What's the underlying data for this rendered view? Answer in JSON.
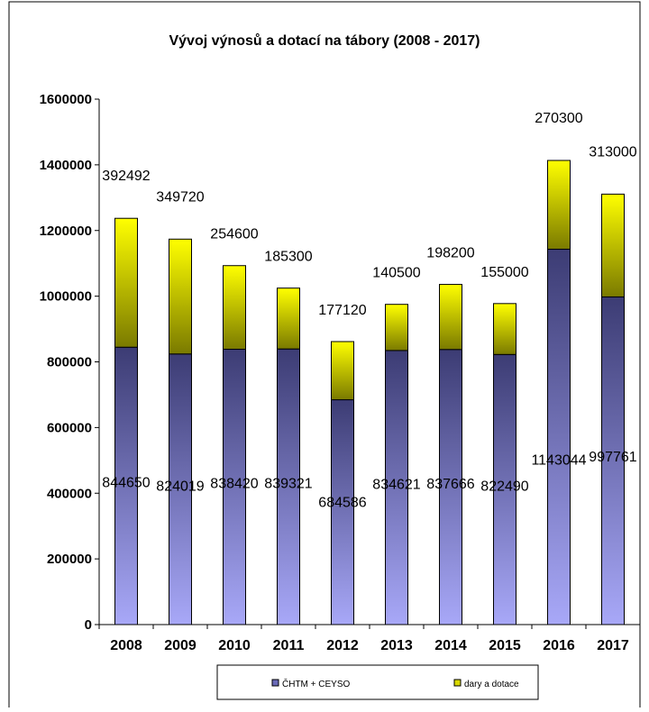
{
  "chart_data": {
    "type": "bar",
    "stacked": true,
    "title": "Vývoj výnosů a dotací na tábory (2008 - 2017)",
    "xlabel": "",
    "ylabel": "",
    "categories": [
      "2008",
      "2009",
      "2010",
      "2011",
      "2012",
      "2013",
      "2014",
      "2015",
      "2016",
      "2017"
    ],
    "series": [
      {
        "name": "ČHTM + CEYSO",
        "values": [
          844650,
          824019,
          838420,
          839321,
          684586,
          834621,
          837666,
          822490,
          1143044,
          997761
        ],
        "labels": [
          "844650",
          "824019",
          "838420",
          "839321",
          "684586",
          "834621",
          "837666",
          "822490",
          "1143044",
          "997761"
        ],
        "color_top": "#3c3c74",
        "color_bottom": "#a8a8f8"
      },
      {
        "name": "dary a dotace",
        "values": [
          392492,
          349720,
          254600,
          185300,
          177120,
          140500,
          198200,
          155000,
          270300,
          313000
        ],
        "labels": [
          "392492",
          "349720",
          "254600",
          "185300",
          "177120",
          "140500",
          "198200",
          "155000",
          "270300",
          "313000"
        ],
        "color_top": "#ffff00",
        "color_bottom": "#7a7a00"
      }
    ],
    "ylim": [
      0,
      1600000
    ],
    "yticks": [
      0,
      200000,
      400000,
      600000,
      800000,
      1000000,
      1200000,
      1400000,
      1600000
    ],
    "ytick_labels": [
      "0",
      "200000",
      "400000",
      "600000",
      "800000",
      "1000000",
      "1200000",
      "1400000",
      "1600000"
    ],
    "grid": false,
    "legend": "bottom"
  }
}
